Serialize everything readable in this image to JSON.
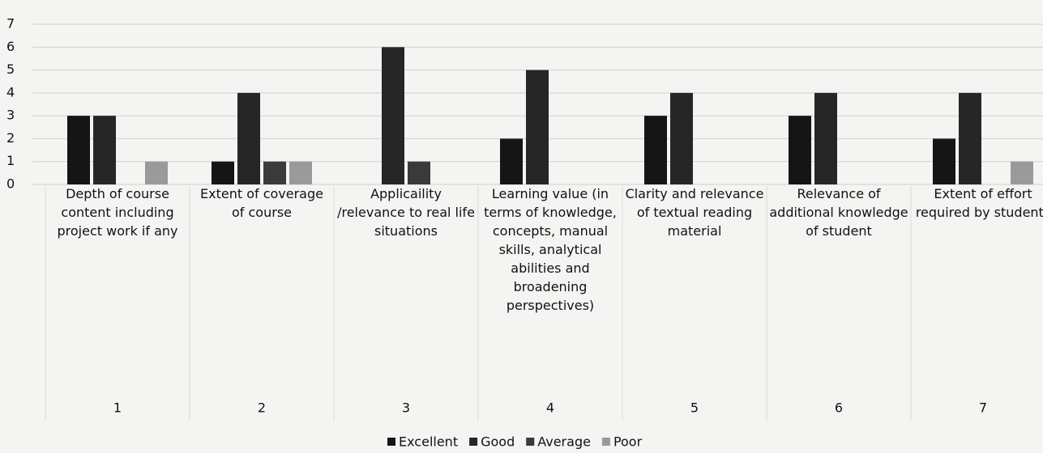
{
  "chart_data": {
    "type": "bar",
    "categories": [
      "Depth of course content including project work if any",
      "Extent of coverage of course",
      "Applicaility /relevance to real life situations",
      "Learning value (in terms of knowledge, concepts, manual skills, analytical abilities and broadening perspectives)",
      "Clarity and relevance of textual reading material",
      "Relevance of additional knowledge of student",
      "Extent of effort required by students"
    ],
    "category_numbers": [
      1,
      2,
      3,
      4,
      5,
      6,
      7
    ],
    "series": [
      {
        "name": "Excellent",
        "color": "#151515",
        "values": [
          3,
          1,
          0,
          2,
          3,
          3,
          2
        ]
      },
      {
        "name": "Good",
        "color": "#262626",
        "values": [
          3,
          4,
          6,
          5,
          4,
          4,
          4
        ]
      },
      {
        "name": "Average",
        "color": "#3a3a3a",
        "values": [
          0,
          1,
          1,
          0,
          0,
          0,
          0
        ]
      },
      {
        "name": "Poor",
        "color": "#9a9a9a",
        "values": [
          1,
          1,
          0,
          0,
          0,
          0,
          1
        ]
      }
    ],
    "ylim": [
      0,
      7
    ],
    "yticks": [
      0,
      1,
      2,
      3,
      4,
      5,
      6,
      7
    ],
    "grid": true,
    "legend": "bottom"
  }
}
